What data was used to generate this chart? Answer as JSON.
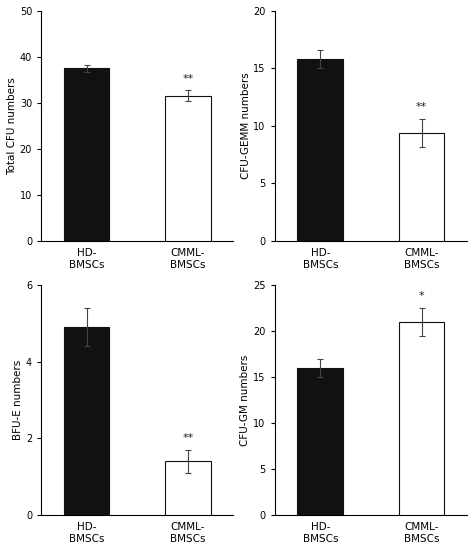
{
  "subplots": [
    {
      "ylabel": "Total CFU numbers",
      "ylim": [
        0,
        50
      ],
      "yticks": [
        0,
        10,
        20,
        30,
        40,
        50
      ],
      "bars": [
        {
          "label": "HD-\nBMSCs",
          "value": 37.5,
          "error": 0.7,
          "color": "#111111",
          "edgecolor": "#111111"
        },
        {
          "label": "CMML-\nBMSCs",
          "value": 31.5,
          "error": 1.2,
          "color": "#ffffff",
          "edgecolor": "#111111"
        }
      ],
      "sig_bar": 1,
      "sig_text": "**"
    },
    {
      "ylabel": "CFU-GEMM numbers",
      "ylim": [
        0,
        20
      ],
      "yticks": [
        0,
        5,
        10,
        15,
        20
      ],
      "bars": [
        {
          "label": "HD-\nBMSCs",
          "value": 15.8,
          "error": 0.8,
          "color": "#111111",
          "edgecolor": "#111111"
        },
        {
          "label": "CMML-\nBMSCs",
          "value": 9.4,
          "error": 1.2,
          "color": "#ffffff",
          "edgecolor": "#111111"
        }
      ],
      "sig_bar": 1,
      "sig_text": "**"
    },
    {
      "ylabel": "BFU-E numbers",
      "ylim": [
        0,
        6
      ],
      "yticks": [
        0,
        2,
        4,
        6
      ],
      "bars": [
        {
          "label": "HD-\nBMSCs",
          "value": 4.9,
          "error": 0.5,
          "color": "#111111",
          "edgecolor": "#111111"
        },
        {
          "label": "CMML-\nBMSCs",
          "value": 1.4,
          "error": 0.3,
          "color": "#ffffff",
          "edgecolor": "#111111"
        }
      ],
      "sig_bar": 1,
      "sig_text": "**"
    },
    {
      "ylabel": "CFU-GM numbers",
      "ylim": [
        0,
        25
      ],
      "yticks": [
        0,
        5,
        10,
        15,
        20,
        25
      ],
      "bars": [
        {
          "label": "HD-\nBMSCs",
          "value": 16.0,
          "error": 1.0,
          "color": "#111111",
          "edgecolor": "#111111"
        },
        {
          "label": "CMML-\nBMSCs",
          "value": 21.0,
          "error": 1.5,
          "color": "#ffffff",
          "edgecolor": "#111111"
        }
      ],
      "sig_bar": 1,
      "sig_text": "*"
    }
  ],
  "bar_width": 0.45,
  "background_color": "#ffffff",
  "fontsize": 7.5,
  "tick_fontsize": 7,
  "positions": [
    1.0,
    2.0
  ]
}
